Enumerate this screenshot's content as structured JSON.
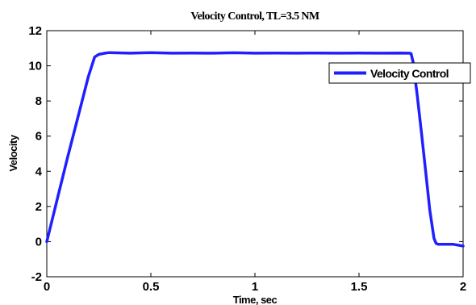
{
  "chart_data": {
    "type": "line",
    "title": "Velocity Control, TL=3.5 NM",
    "xlabel": "Time, sec",
    "ylabel": "Velocity",
    "xlim": [
      0,
      2
    ],
    "ylim": [
      -2,
      12
    ],
    "xticks": [
      0,
      0.5,
      1,
      1.5,
      2
    ],
    "xtick_labels": [
      "0",
      "0.5",
      "1",
      "1.5",
      "2"
    ],
    "yticks": [
      -2,
      0,
      2,
      4,
      6,
      8,
      10,
      12
    ],
    "ytick_labels": [
      "-2",
      "0",
      "2",
      "4",
      "6",
      "8",
      "10",
      "12"
    ],
    "grid": false,
    "legend_position": "top-right",
    "series": [
      {
        "name": "Velocity Control",
        "color": "#1f1fff",
        "x": [
          0,
          0.05,
          0.1,
          0.15,
          0.2,
          0.23,
          0.25,
          0.28,
          0.3,
          0.4,
          0.5,
          0.6,
          0.7,
          0.8,
          0.9,
          1.0,
          1.1,
          1.2,
          1.3,
          1.4,
          1.5,
          1.6,
          1.7,
          1.74,
          1.75,
          1.76,
          1.78,
          1.8,
          1.82,
          1.84,
          1.86,
          1.87,
          1.88,
          1.9,
          1.95,
          2.0
        ],
        "y": [
          0,
          2.4,
          4.8,
          7.1,
          9.4,
          10.5,
          10.65,
          10.72,
          10.75,
          10.72,
          10.75,
          10.72,
          10.73,
          10.72,
          10.74,
          10.72,
          10.73,
          10.72,
          10.73,
          10.72,
          10.73,
          10.72,
          10.73,
          10.72,
          10.7,
          10.2,
          8.3,
          6.2,
          4.0,
          1.8,
          0.2,
          -0.1,
          -0.15,
          -0.15,
          -0.15,
          -0.25
        ]
      }
    ]
  }
}
